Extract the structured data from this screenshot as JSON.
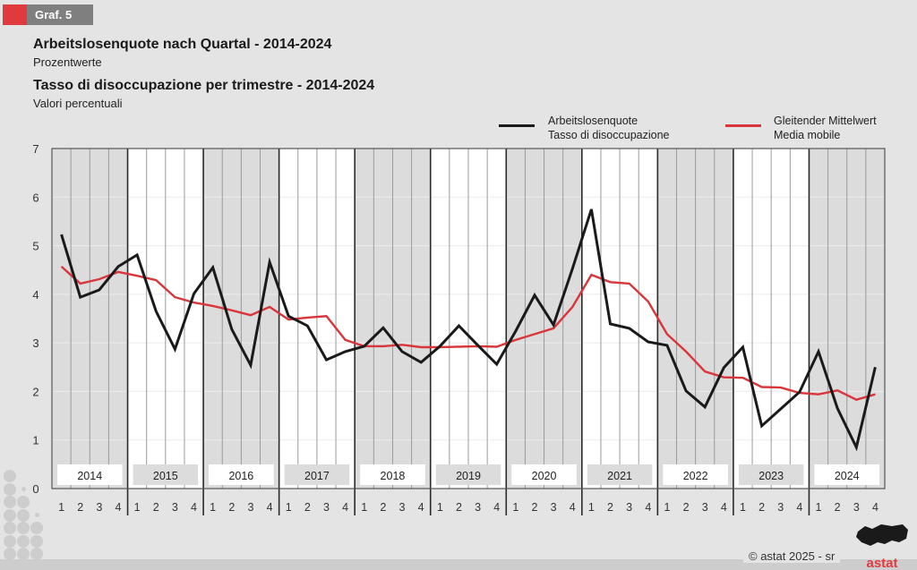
{
  "header": {
    "graph_label": "Graf. 5",
    "title_de": "Arbeitslosenquote nach Quartal - 2014-2024",
    "subtitle_de": "Prozentwerte",
    "title_it": "Tasso di disoccupazione per trimestre - 2014-2024",
    "subtitle_it": "Valori percentuali"
  },
  "footer": {
    "copyright": "© astat 2025 - sr",
    "logo_text": "astat"
  },
  "colors": {
    "accent_red": "#e03a3e",
    "tab_gray": "#7f7f7f",
    "series_black": "#1a1a1a",
    "series_red": "#d9363b",
    "band_gray": "#dcdcdc",
    "band_white": "#ffffff"
  },
  "chart_data": {
    "type": "line",
    "title": "Arbeitslosenquote nach Quartal - 2014-2024 / Tasso di disoccupazione per trimestre - 2014-2024",
    "xlabel": "",
    "ylabel": "",
    "ylim": [
      0,
      7
    ],
    "yticks": [
      "0",
      "1",
      "2",
      "3",
      "4",
      "5",
      "6",
      "7"
    ],
    "grid": true,
    "legend_position": "top-right",
    "years": [
      "2014",
      "2015",
      "2016",
      "2017",
      "2018",
      "2019",
      "2020",
      "2021",
      "2022",
      "2023",
      "2024"
    ],
    "quarter_labels": [
      "1",
      "2",
      "3",
      "4"
    ],
    "series": [
      {
        "name": "Arbeitslosenquote / Tasso di disoccupazione",
        "legend_line1": "Arbeitslosenquote",
        "legend_line2": "Tasso di disoccupazione",
        "color": "#1a1a1a",
        "values": [
          5.23,
          3.94,
          4.09,
          4.57,
          4.81,
          3.65,
          2.87,
          4.01,
          4.55,
          3.28,
          2.54,
          4.66,
          3.55,
          3.35,
          2.65,
          2.82,
          2.93,
          3.31,
          2.82,
          2.6,
          2.93,
          3.35,
          2.95,
          2.56,
          3.24,
          3.98,
          3.37,
          4.53,
          5.75,
          3.39,
          3.3,
          3.02,
          2.95,
          2.01,
          1.68,
          2.49,
          2.91,
          1.29,
          1.64,
          1.99,
          2.82,
          1.65,
          0.85,
          2.5
        ]
      },
      {
        "name": "Gleitender Mittelwert / Media mobile",
        "legend_line1": "Gleitender Mittelwert",
        "legend_line2": "Media mobile",
        "color": "#d9363b",
        "values": [
          4.57,
          4.22,
          4.31,
          4.46,
          4.38,
          4.29,
          3.94,
          3.83,
          3.76,
          3.67,
          3.57,
          3.74,
          3.48,
          3.52,
          3.55,
          3.06,
          2.93,
          2.93,
          2.96,
          2.91,
          2.91,
          2.92,
          2.93,
          2.92,
          3.06,
          3.18,
          3.3,
          3.74,
          4.4,
          4.25,
          4.22,
          3.85,
          3.18,
          2.82,
          2.41,
          2.29,
          2.28,
          2.09,
          2.08,
          1.97,
          1.94,
          2.02,
          1.83,
          1.94
        ]
      }
    ]
  }
}
